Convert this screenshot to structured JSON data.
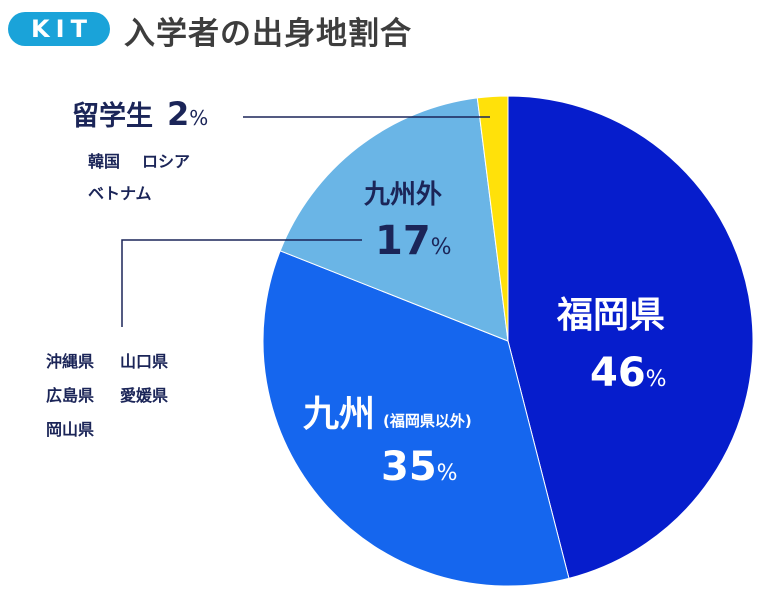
{
  "logo": "KIT",
  "title": "入学者の出身地割合",
  "chart_data": {
    "type": "pie",
    "title": "入学者の出身地割合",
    "start_angle_deg": 0,
    "direction": "clockwise",
    "slices": [
      {
        "label": "福岡県",
        "value": 46,
        "color": "#061dcc"
      },
      {
        "label": "九州",
        "note": "(福岡県以外)",
        "value": 35,
        "color": "#1566ee"
      },
      {
        "label": "九州外",
        "value": 17,
        "color": "#6ab5e6"
      },
      {
        "label": "留学生",
        "value": 2,
        "color": "#ffe10a"
      }
    ],
    "unit": "%",
    "annotations": {
      "kyushu_outside_prefectures": [
        "沖縄県",
        "山口県",
        "広島県",
        "愛媛県",
        "岡山県"
      ],
      "foreign_countries": [
        "韓国",
        "ロシア",
        "ベトナム"
      ]
    }
  },
  "labels": {
    "fukuoka": {
      "name": "福岡県",
      "value": "46",
      "unit": "%"
    },
    "kyushu": {
      "name": "九州",
      "note": "(福岡県以外)",
      "value": "35",
      "unit": "%"
    },
    "outside": {
      "name": "九州外",
      "value": "17",
      "unit": "%"
    },
    "intl": {
      "name": "留学生",
      "value": "2",
      "unit": "%"
    }
  },
  "lists": {
    "intl_row1a": "韓国",
    "intl_row1b": "ロシア",
    "intl_row2": "ベトナム",
    "pref_row1a": "沖縄県",
    "pref_row1b": "山口県",
    "pref_row2a": "広島県",
    "pref_row2b": "愛媛県",
    "pref_row3": "岡山県"
  }
}
